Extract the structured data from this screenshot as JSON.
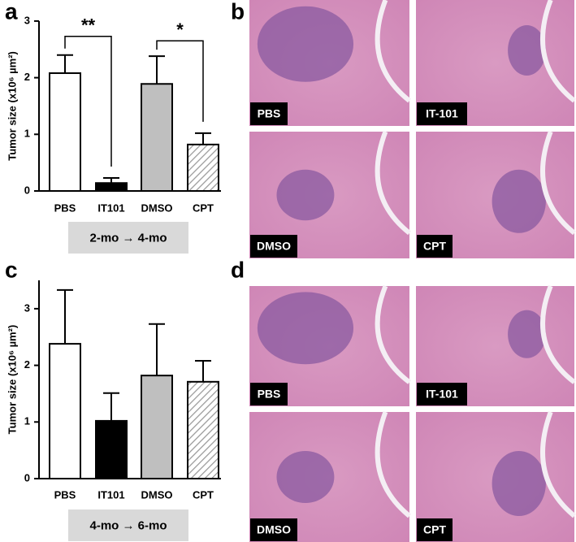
{
  "panel_labels": [
    "a",
    "b",
    "c",
    "d"
  ],
  "chart_data": [
    {
      "type": "bar",
      "y_label": "Tumor size (x10⁶ µm²)",
      "subtitle": "2-mo → 4-mo",
      "categories": [
        "PBS",
        "IT101",
        "DMSO",
        "CPT"
      ],
      "values": [
        2.08,
        0.14,
        1.89,
        0.82
      ],
      "errors": [
        0.32,
        0.09,
        0.49,
        0.2
      ],
      "colors": [
        "#ffffff",
        "#000000",
        "#bfbfbf",
        "#ffffff"
      ],
      "hatched": [
        false,
        false,
        false,
        true
      ],
      "ylim": [
        0,
        3
      ],
      "yticks": [
        0,
        1,
        2,
        3
      ],
      "annotations": [
        {
          "text": "**",
          "from": 0,
          "to": 1,
          "y": 2.73
        },
        {
          "text": "*",
          "from": 2,
          "to": 3,
          "y": 2.65
        }
      ]
    },
    {
      "type": "bar",
      "y_label": "Tumor size (x10⁶ µm²)",
      "subtitle": "4-mo → 6-mo",
      "categories": [
        "PBS",
        "IT101",
        "DMSO",
        "CPT"
      ],
      "values": [
        2.38,
        1.02,
        1.82,
        1.71
      ],
      "errors": [
        0.95,
        0.49,
        0.91,
        0.37
      ],
      "colors": [
        "#ffffff",
        "#000000",
        "#bfbfbf",
        "#ffffff"
      ],
      "hatched": [
        false,
        false,
        false,
        true
      ],
      "ylim": [
        0,
        3.5
      ],
      "yticks": [
        0,
        1,
        2,
        3
      ]
    }
  ],
  "micrographs": [
    {
      "labels": [
        "PBS",
        "IT-101",
        "DMSO",
        "CPT"
      ]
    },
    {
      "labels": [
        "PBS",
        "IT-101",
        "DMSO",
        "CPT"
      ]
    }
  ]
}
